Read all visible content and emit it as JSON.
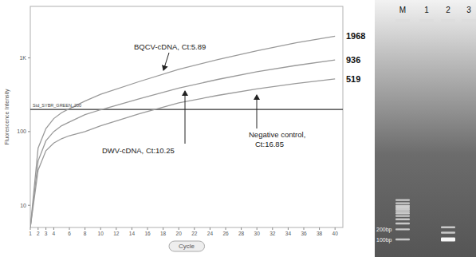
{
  "chart_data": {
    "type": "line",
    "y_label": "Fluorescence Intensity",
    "x_label": "Cycle",
    "log": "y",
    "xlim": [
      1,
      41
    ],
    "ylim": [
      5,
      5000
    ],
    "xticks": [
      1,
      2,
      3,
      4,
      6,
      8,
      10,
      12,
      14,
      16,
      18,
      20,
      22,
      24,
      26,
      28,
      30,
      32,
      34,
      36,
      38,
      40
    ],
    "yticks": [
      10,
      100,
      {
        "value": 1000,
        "label": "1K"
      }
    ],
    "threshold": {
      "value": 200,
      "label": "Std_SYBR_GREEN_200"
    },
    "x": [
      1,
      2,
      3,
      4,
      5,
      6,
      8,
      10,
      15,
      20,
      25,
      30,
      35,
      40
    ],
    "series": [
      {
        "color": "#9a9a9a",
        "values": [
          5,
          60,
          110,
          150,
          180,
          205,
          260,
          320,
          480,
          700,
          950,
          1250,
          1600,
          1968
        ]
      },
      {
        "color": "#9a9a9a",
        "values": [
          5,
          40,
          75,
          100,
          120,
          135,
          170,
          198,
          280,
          390,
          510,
          650,
          790,
          936
        ]
      },
      {
        "color": "#9a9a9a",
        "values": [
          5,
          30,
          55,
          70,
          80,
          88,
          100,
          120,
          175,
          245,
          310,
          380,
          450,
          519
        ]
      }
    ],
    "annotations": [
      "BQCV-cDNA, Ct:5.89",
      "DWV-cDNA, Ct:10.25",
      "Negative control, Ct:16.85"
    ]
  },
  "gel": {
    "lanes": [
      "M",
      "1",
      "2",
      "3"
    ],
    "bands": [
      [
        100,
        200,
        300,
        400,
        500,
        600,
        700,
        800,
        900,
        1000,
        1200,
        1500
      ],
      [],
      [
        100,
        160,
        230
      ],
      []
    ],
    "size_labels": [
      {
        "value": 200,
        "label": "200bp"
      },
      {
        "value": 100,
        "label": "100bp"
      }
    ]
  }
}
